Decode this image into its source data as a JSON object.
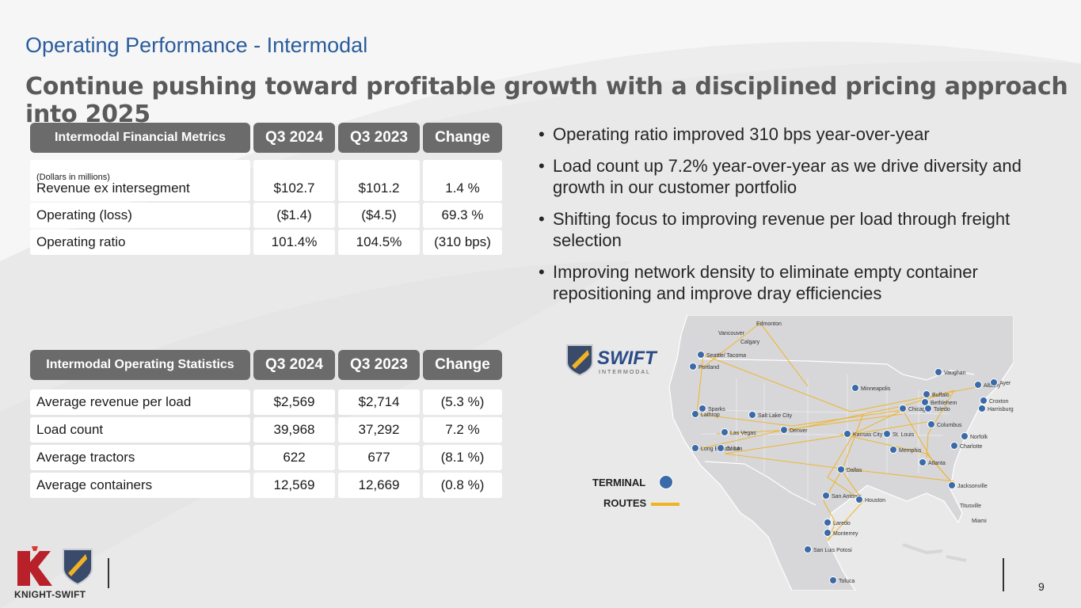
{
  "slide": {
    "label": "Operating Performance - Intermodal",
    "headline": "Continue pushing toward profitable growth with a disciplined pricing approach into 2025",
    "page_number": "9",
    "brand": "KNIGHT-SWIFT"
  },
  "financial_table": {
    "headers": [
      "Intermodal Financial Metrics",
      "Q3 2024",
      "Q3 2023",
      "Change"
    ],
    "note": "(Dollars in millions)",
    "rows": [
      [
        "Revenue ex intersegment",
        "$102.7",
        "$101.2",
        "1.4 %"
      ],
      [
        "Operating (loss)",
        "($1.4)",
        "($4.5)",
        "69.3 %"
      ],
      [
        "Operating ratio",
        "101.4%",
        "104.5%",
        "(310 bps)"
      ]
    ]
  },
  "operating_table": {
    "headers": [
      "Intermodal Operating Statistics",
      "Q3 2024",
      "Q3 2023",
      "Change"
    ],
    "rows": [
      [
        "Average revenue per load",
        "$2,569",
        "$2,714",
        "(5.3 %)"
      ],
      [
        "Load count",
        "39,968",
        "37,292",
        "7.2 %"
      ],
      [
        "Average tractors",
        "622",
        "677",
        "(8.1 %)"
      ],
      [
        "Average containers",
        "12,569",
        "12,669",
        "(0.8 %)"
      ]
    ]
  },
  "bullets": [
    "Operating ratio improved 310 bps year-over-year",
    "Load count up 7.2% year-over-year as we drive diversity and growth in our customer portfolio",
    "Shifting focus to improving revenue per load through freight selection",
    "Improving network density to eliminate empty container repositioning and improve dray efficiencies"
  ],
  "map": {
    "logo_text": "SWIFT",
    "logo_sub": "INTERMODAL",
    "legend_terminal": "TERMINAL",
    "legend_routes": "ROUTES",
    "route_color": "#f0b323",
    "terminal_color": "#3a6aa8",
    "cities": [
      {
        "name": "Edmonton",
        "t": false
      },
      {
        "name": "Vancouver",
        "t": false
      },
      {
        "name": "Calgary",
        "t": false
      },
      {
        "name": "Seattle/ Tacoma",
        "t": true
      },
      {
        "name": "Portland",
        "t": true
      },
      {
        "name": "Sparks",
        "t": true
      },
      {
        "name": "Lathrop",
        "t": true
      },
      {
        "name": "Salt Lake City",
        "t": true
      },
      {
        "name": "Las Vegas",
        "t": true
      },
      {
        "name": "Long Beach/ LA",
        "t": true
      },
      {
        "name": "Colton",
        "t": true
      },
      {
        "name": "Denver",
        "t": true
      },
      {
        "name": "Minneapolis",
        "t": true
      },
      {
        "name": "Kansas City",
        "t": true
      },
      {
        "name": "St. Louis",
        "t": true
      },
      {
        "name": "Chicago",
        "t": true
      },
      {
        "name": "Memphis",
        "t": true
      },
      {
        "name": "Dallas",
        "t": true
      },
      {
        "name": "San Antonio",
        "t": true
      },
      {
        "name": "Houston",
        "t": true
      },
      {
        "name": "Laredo",
        "t": true
      },
      {
        "name": "Monterrey",
        "t": true
      },
      {
        "name": "San Luis Potosi",
        "t": true
      },
      {
        "name": "Toluca",
        "t": true
      },
      {
        "name": "Vaughan",
        "t": true
      },
      {
        "name": "Buffalo",
        "t": true
      },
      {
        "name": "Albany",
        "t": true
      },
      {
        "name": "Ayer",
        "t": true
      },
      {
        "name": "Bethlehem",
        "t": true
      },
      {
        "name": "Croxton",
        "t": true
      },
      {
        "name": "Toledo",
        "t": true
      },
      {
        "name": "Harrisburg",
        "t": true
      },
      {
        "name": "Columbus",
        "t": true
      },
      {
        "name": "Norfolk",
        "t": true
      },
      {
        "name": "Charlotte",
        "t": true
      },
      {
        "name": "Atlanta",
        "t": true
      },
      {
        "name": "Jacksonville",
        "t": true
      },
      {
        "name": "Titusville",
        "t": false
      },
      {
        "name": "Miami",
        "t": false
      }
    ]
  }
}
